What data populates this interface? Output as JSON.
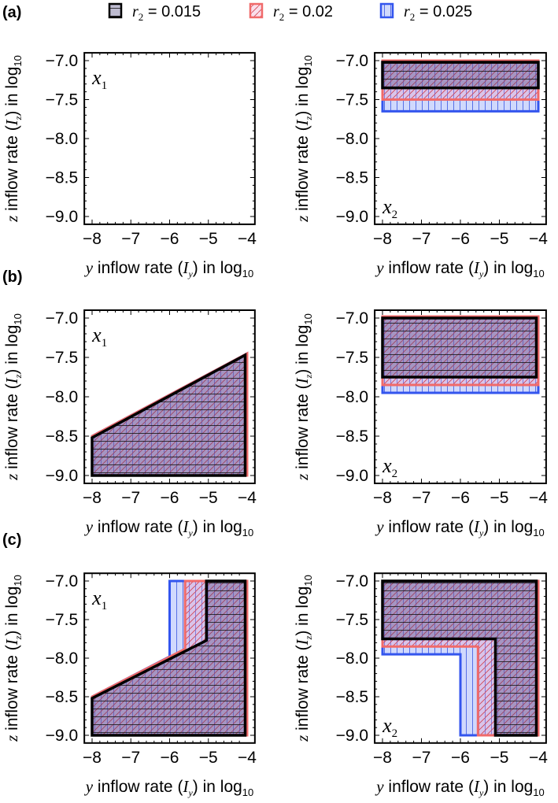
{
  "legend": [
    {
      "symbol": "r",
      "sub": "2",
      "text": " = 0.015",
      "color": "#000000",
      "fill": "#9aa3a0",
      "hatch": "horizontal"
    },
    {
      "symbol": "r",
      "sub": "2",
      "text": " = 0.02",
      "color": "#f06a6a",
      "fill": "#f7c8cc",
      "hatch": "diagonal"
    },
    {
      "symbol": "r",
      "sub": "2",
      "text": " = 0.025",
      "color": "#3355ee",
      "fill": "#c5d0fb",
      "hatch": "vertical"
    }
  ],
  "axis": {
    "xlabel": {
      "var": "y",
      "text": " inflow rate (",
      "I": "I",
      "sub": "y",
      "text2": ") in log",
      "base": "10"
    },
    "ylabel": {
      "var": "z",
      "text": " inflow rate (",
      "I": "I",
      "sub": "z",
      "text2": ") in log",
      "base": "10"
    }
  },
  "chart_data": {
    "type": "region",
    "xlim": [
      -8.2,
      -3.8
    ],
    "ylim": [
      -9.1,
      -6.9
    ],
    "xticks": [
      "-8",
      "-7",
      "-6",
      "-5",
      "-4"
    ],
    "xtick_values": [
      -8,
      -7,
      -6,
      -5,
      -4
    ],
    "yticks": [
      "-7.0",
      "-7.5",
      "-8.0",
      "-8.5",
      "-9.0"
    ],
    "ytick_values": [
      -7,
      -7.5,
      -8,
      -8.5,
      -9
    ],
    "rows": [
      {
        "label": "(a)",
        "panels": [
          {
            "var": "x",
            "sub": "1",
            "labelpos": "top",
            "regions": []
          },
          {
            "var": "x",
            "sub": "2",
            "labelpos": "bottom",
            "regions": [
              {
                "series": 2,
                "points": [
                  [
                    -8,
                    -7
                  ],
                  [
                    -4,
                    -7
                  ],
                  [
                    -4,
                    -7.65
                  ],
                  [
                    -8,
                    -7.65
                  ]
                ]
              },
              {
                "series": 1,
                "points": [
                  [
                    -8,
                    -7
                  ],
                  [
                    -4,
                    -7
                  ],
                  [
                    -4,
                    -7.5
                  ],
                  [
                    -8,
                    -7.5
                  ]
                ]
              },
              {
                "series": 0,
                "points": [
                  [
                    -8,
                    -7.02
                  ],
                  [
                    -4,
                    -7.02
                  ],
                  [
                    -4,
                    -7.35
                  ],
                  [
                    -8,
                    -7.35
                  ]
                ]
              }
            ]
          }
        ]
      },
      {
        "label": "(b)",
        "panels": [
          {
            "var": "x",
            "sub": "1",
            "labelpos": "top",
            "regions": [
              {
                "series": 2,
                "points": [
                  [
                    -8,
                    -9
                  ],
                  [
                    -4,
                    -9
                  ],
                  [
                    -4,
                    -7.45
                  ],
                  [
                    -8,
                    -8.5
                  ]
                ]
              },
              {
                "series": 1,
                "points": [
                  [
                    -8,
                    -9
                  ],
                  [
                    -4,
                    -9
                  ],
                  [
                    -4,
                    -7.45
                  ],
                  [
                    -8,
                    -8.5
                  ]
                ]
              },
              {
                "series": 0,
                "points": [
                  [
                    -8,
                    -9
                  ],
                  [
                    -4.05,
                    -9
                  ],
                  [
                    -4.05,
                    -7.47
                  ],
                  [
                    -8,
                    -8.52
                  ]
                ]
              }
            ]
          },
          {
            "var": "x",
            "sub": "2",
            "labelpos": "bottom",
            "regions": [
              {
                "series": 2,
                "points": [
                  [
                    -8,
                    -7
                  ],
                  [
                    -4,
                    -7
                  ],
                  [
                    -4,
                    -7.95
                  ],
                  [
                    -8,
                    -7.95
                  ]
                ]
              },
              {
                "series": 1,
                "points": [
                  [
                    -8,
                    -6.98
                  ],
                  [
                    -4,
                    -6.98
                  ],
                  [
                    -4,
                    -7.85
                  ],
                  [
                    -8,
                    -7.85
                  ]
                ]
              },
              {
                "series": 0,
                "points": [
                  [
                    -8,
                    -7
                  ],
                  [
                    -4.05,
                    -7
                  ],
                  [
                    -4.05,
                    -7.75
                  ],
                  [
                    -8,
                    -7.75
                  ]
                ]
              }
            ]
          }
        ]
      },
      {
        "label": "(c)",
        "panels": [
          {
            "var": "x",
            "sub": "1",
            "labelpos": "top",
            "regions": [
              {
                "series": 2,
                "points": [
                  [
                    -8,
                    -9
                  ],
                  [
                    -4,
                    -9
                  ],
                  [
                    -4,
                    -7
                  ],
                  [
                    -6,
                    -7
                  ],
                  [
                    -6,
                    -7.98
                  ],
                  [
                    -8,
                    -8.5
                  ]
                ]
              },
              {
                "series": 1,
                "points": [
                  [
                    -8,
                    -9
                  ],
                  [
                    -4,
                    -9
                  ],
                  [
                    -4,
                    -7
                  ],
                  [
                    -5.6,
                    -7
                  ],
                  [
                    -5.6,
                    -7.88
                  ],
                  [
                    -8,
                    -8.5
                  ]
                ]
              },
              {
                "series": 0,
                "points": [
                  [
                    -8,
                    -9
                  ],
                  [
                    -4.05,
                    -9
                  ],
                  [
                    -4.05,
                    -7
                  ],
                  [
                    -5.05,
                    -7
                  ],
                  [
                    -5.05,
                    -7.77
                  ],
                  [
                    -8,
                    -8.52
                  ]
                ]
              }
            ]
          },
          {
            "var": "x",
            "sub": "2",
            "labelpos": "bottom",
            "regions": [
              {
                "series": 2,
                "points": [
                  [
                    -8,
                    -7
                  ],
                  [
                    -4,
                    -7
                  ],
                  [
                    -4,
                    -9
                  ],
                  [
                    -6,
                    -9
                  ],
                  [
                    -6,
                    -7.95
                  ],
                  [
                    -8,
                    -7.95
                  ]
                ]
              },
              {
                "series": 1,
                "points": [
                  [
                    -8,
                    -7
                  ],
                  [
                    -4,
                    -7
                  ],
                  [
                    -4,
                    -9
                  ],
                  [
                    -5.55,
                    -9
                  ],
                  [
                    -5.55,
                    -7.85
                  ],
                  [
                    -8,
                    -7.85
                  ]
                ]
              },
              {
                "series": 0,
                "points": [
                  [
                    -8,
                    -7
                  ],
                  [
                    -4.05,
                    -7
                  ],
                  [
                    -4.05,
                    -9
                  ],
                  [
                    -5.1,
                    -9
                  ],
                  [
                    -5.1,
                    -7.75
                  ],
                  [
                    -8,
                    -7.75
                  ]
                ]
              }
            ]
          }
        ]
      }
    ]
  }
}
